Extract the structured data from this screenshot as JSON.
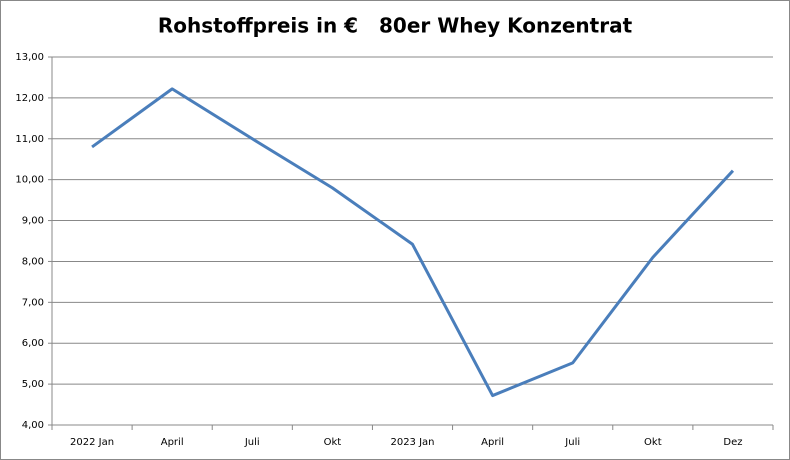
{
  "chart_data": {
    "type": "line",
    "title": "Rohstoffpreis in €   80er Whey Konzentrat",
    "categories": [
      "2022 Jan",
      "April",
      "Juli",
      "Okt",
      "2023 Jan",
      "April",
      "Juli",
      "Okt",
      "Dez"
    ],
    "values": [
      10.8,
      12.22,
      11.0,
      9.8,
      8.42,
      4.72,
      5.52,
      8.1,
      10.22
    ],
    "color": "#4a7ebb",
    "ylim": [
      4,
      13
    ],
    "yticks": [
      {
        "value": 4,
        "label": "4,00"
      },
      {
        "value": 5,
        "label": "5,00"
      },
      {
        "value": 6,
        "label": "6,00"
      },
      {
        "value": 7,
        "label": "7,00"
      },
      {
        "value": 8,
        "label": "8,00"
      },
      {
        "value": 9,
        "label": "9,00"
      },
      {
        "value": 10,
        "label": "10,00"
      },
      {
        "value": 11,
        "label": "11,00"
      },
      {
        "value": 12,
        "label": "12,00"
      },
      {
        "value": 13,
        "label": "13,00"
      }
    ],
    "grid": true
  }
}
